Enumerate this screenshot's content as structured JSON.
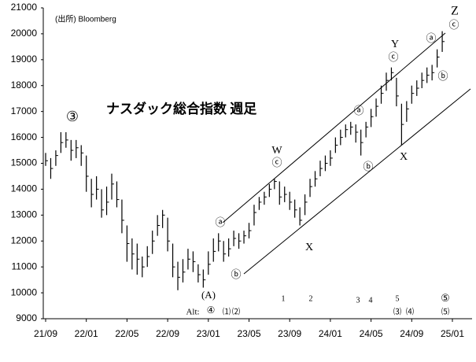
{
  "chart_data": {
    "type": "ohlc",
    "source": "(出所) Bloomberg",
    "title": "ナスダック総合指数 週足",
    "categories": [
      "21/09",
      null,
      null,
      null,
      null,
      null,
      null,
      null,
      "22/01",
      null,
      null,
      null,
      null,
      null,
      null,
      null,
      "22/05",
      null,
      null,
      null,
      null,
      null,
      null,
      null,
      "22/09",
      null,
      null,
      null,
      null,
      null,
      null,
      null,
      "23/01",
      null,
      null,
      null,
      null,
      null,
      null,
      null,
      "23/05",
      null,
      null,
      null,
      null,
      null,
      null,
      null,
      "23/09",
      null,
      null,
      null,
      null,
      null,
      null,
      null,
      "24/01",
      null,
      null,
      null,
      null,
      null,
      null,
      null,
      "24/05",
      null,
      null,
      null,
      null,
      null,
      null,
      null,
      "24/09",
      null,
      null,
      null,
      null,
      null,
      null,
      null,
      "25/01"
    ],
    "high": [
      15400,
      15200,
      15500,
      16200,
      16200,
      15900,
      15900,
      15700,
      15300,
      14400,
      14500,
      14000,
      14100,
      14600,
      14300,
      13600,
      12600,
      12100,
      11900,
      11400,
      11800,
      12400,
      13000,
      13200,
      12900,
      11900,
      11200,
      11300,
      11700,
      11600,
      11100,
      10900,
      11600,
      12100,
      12300,
      12000,
      12100,
      12400,
      12300,
      12400,
      12700,
      13400,
      13700,
      13900,
      14200,
      14400,
      14300,
      14100,
      13900,
      13600,
      13300,
      13800,
      14400,
      14700,
      15100,
      15300,
      15500,
      16000,
      16300,
      16500,
      16600,
      16500,
      16300,
      16600,
      17100,
      17500,
      18000,
      18500,
      18700,
      18300,
      17300,
      17400,
      18000,
      18200,
      18500,
      18700,
      18800,
      19400,
      20100,
      null,
      null
    ],
    "low": [
      14900,
      14400,
      14900,
      15400,
      15600,
      15100,
      15200,
      14900,
      13900,
      13300,
      13600,
      12900,
      13000,
      13600,
      13300,
      12300,
      11200,
      10900,
      10700,
      10600,
      11000,
      11500,
      12200,
      12500,
      11600,
      10600,
      10100,
      10400,
      10900,
      10800,
      10400,
      10200,
      10700,
      11200,
      11600,
      11200,
      11400,
      11800,
      11700,
      11900,
      12100,
      12600,
      13200,
      13400,
      13700,
      14000,
      13400,
      13500,
      13200,
      12900,
      12600,
      13000,
      13700,
      14100,
      14500,
      14700,
      14900,
      15400,
      15700,
      16000,
      16100,
      15800,
      15300,
      16000,
      16400,
      16800,
      17300,
      17800,
      18200,
      17200,
      15700,
      16600,
      17300,
      17600,
      17900,
      18100,
      18200,
      18700,
      19300,
      null,
      null
    ],
    "close": [
      15100,
      14800,
      15300,
      15800,
      15900,
      15500,
      15600,
      15400,
      14500,
      13800,
      14000,
      13200,
      13500,
      14200,
      13600,
      12800,
      11900,
      11500,
      11300,
      11000,
      11400,
      12000,
      12600,
      13000,
      12000,
      11000,
      10600,
      10800,
      11300,
      11200,
      10700,
      10500,
      11100,
      11600,
      12000,
      11500,
      11700,
      12100,
      12000,
      12200,
      12400,
      13100,
      13500,
      13700,
      14000,
      14300,
      13700,
      13800,
      13500,
      13200,
      12800,
      13500,
      14100,
      14400,
      14800,
      15000,
      15200,
      15700,
      16000,
      16300,
      16400,
      16200,
      15800,
      16400,
      16800,
      17200,
      17700,
      18200,
      18500,
      17600,
      16500,
      17100,
      17700,
      17900,
      18200,
      18400,
      18500,
      19100,
      19700,
      null,
      null
    ],
    "color": "#000000",
    "ylim": [
      9000,
      21000
    ],
    "yticks": [
      9000,
      10000,
      11000,
      12000,
      13000,
      14000,
      15000,
      16000,
      17000,
      18000,
      19000,
      20000,
      21000
    ],
    "grid": false,
    "annotations": [
      "③",
      "(A)",
      "ⓐ",
      "ⓑ",
      "ⓒ",
      "W",
      "X",
      "ⓐ",
      "ⓑ",
      "ⓒ",
      "Y",
      "X",
      "ⓐ",
      "ⓑ",
      "ⓒ",
      "Z",
      "Alt:",
      "④",
      "⑴",
      "⑵",
      "1",
      "2",
      "3",
      "4",
      "5",
      "⑶",
      "⑷",
      "⑤",
      "⑸"
    ]
  }
}
